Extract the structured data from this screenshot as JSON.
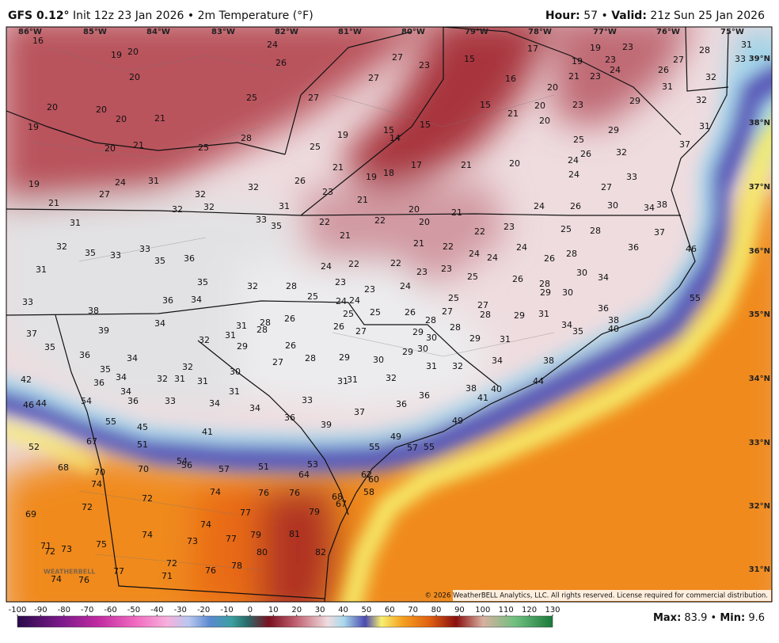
{
  "header": {
    "model": "GFS 0.12°",
    "run": "Init 12z 23 Jan 2026",
    "separator": "•",
    "field": "2m Temperature (°F)",
    "hour_label": "Hour:",
    "hour": "57",
    "valid_label": "Valid:",
    "valid": "21z Sun 25 Jan 2026"
  },
  "longitudes": [
    "86°W",
    "85°W",
    "84°W",
    "83°W",
    "82°W",
    "81°W",
    "80°W",
    "79°W",
    "78°W",
    "77°W",
    "76°W",
    "75°W"
  ],
  "latitudes": [
    "39°N",
    "38°N",
    "37°N",
    "36°N",
    "35°N",
    "34°N",
    "33°N",
    "32°N",
    "31°N"
  ],
  "stations": [
    16,
    19,
    20,
    24,
    26,
    27,
    23,
    15,
    17,
    19,
    23,
    28,
    31,
    33,
    27,
    23,
    24,
    19,
    26,
    21,
    23,
    20,
    32,
    20,
    27,
    16,
    25,
    27,
    23,
    29,
    32,
    31,
    20,
    20,
    20,
    21,
    15,
    21,
    20,
    20,
    19,
    15,
    15,
    14,
    19,
    28,
    25,
    29,
    25,
    31,
    37,
    20,
    21,
    25,
    26,
    32,
    24,
    20,
    21,
    17,
    18,
    19,
    21,
    19,
    24,
    31,
    26,
    23,
    24,
    33,
    27,
    27,
    32,
    32,
    21,
    31,
    32,
    32,
    20,
    21,
    24,
    26,
    30,
    34,
    38,
    21,
    31,
    33,
    35,
    22,
    22,
    20,
    23,
    25,
    28,
    37,
    21,
    22,
    32,
    35,
    33,
    33,
    21,
    22,
    24,
    24,
    24,
    26,
    28,
    36,
    46,
    31,
    35,
    36,
    24,
    22,
    22,
    23,
    23,
    25,
    26,
    30,
    34,
    35,
    32,
    28,
    23,
    23,
    24,
    28,
    29,
    30,
    55,
    33,
    36,
    34,
    25,
    24,
    24,
    25,
    27,
    38,
    25,
    25,
    26,
    27,
    28,
    29,
    31,
    36,
    38,
    34,
    31,
    28,
    28,
    26,
    26,
    27,
    28,
    28,
    34,
    35,
    40,
    37,
    39,
    32,
    31,
    29,
    29,
    30,
    29,
    31,
    35,
    36,
    34,
    26,
    30,
    29,
    27,
    28,
    29,
    30,
    32,
    38,
    34,
    35,
    34,
    32,
    31,
    31,
    30,
    31,
    32,
    42,
    36,
    31,
    31,
    32,
    44,
    34,
    31,
    38,
    40,
    46,
    44,
    54,
    36,
    33,
    34,
    34,
    33,
    36,
    41,
    36,
    37,
    36,
    55,
    45,
    41,
    39,
    49,
    67,
    51,
    49,
    52,
    55,
    57,
    55,
    54,
    56,
    68,
    70,
    70,
    57,
    51,
    53,
    64,
    62,
    60,
    74,
    58,
    72,
    74,
    76,
    76,
    68,
    67,
    72,
    69,
    77,
    79,
    74,
    74,
    77,
    79,
    81,
    73,
    71,
    72,
    73,
    75,
    80,
    82,
    72,
    77,
    76,
    78,
    71,
    74,
    76
  ],
  "colorbar": {
    "ticks": [
      -100,
      -90,
      -80,
      -70,
      -60,
      -50,
      -40,
      -30,
      -20,
      -10,
      0,
      10,
      20,
      30,
      40,
      50,
      60,
      70,
      80,
      90,
      100,
      110,
      120,
      130
    ]
  },
  "footer": {
    "copyright": "© 2026 WeatherBELL Analytics, LLC. All rights reserved. License required for commercial distribution.",
    "max_label": "Max:",
    "max": 83.9,
    "min_label": "Min:",
    "min": 9.6,
    "separator": "•",
    "watermark": "WEATHERBELL"
  }
}
